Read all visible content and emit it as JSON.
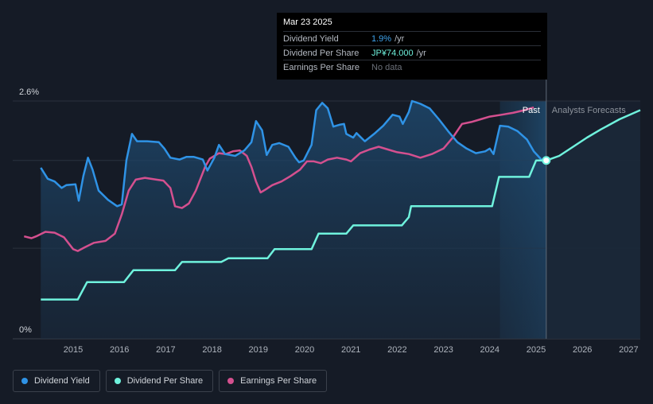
{
  "tooltip": {
    "date": "Mar 23 2025",
    "rows": [
      {
        "label": "Dividend Yield",
        "value": "1.9%",
        "unit": "/yr"
      },
      {
        "label": "Dividend Per Share",
        "value": "JP¥74.000",
        "unit": "/yr"
      },
      {
        "label": "Earnings Per Share",
        "value": "No data",
        "unit": ""
      }
    ]
  },
  "legend": [
    {
      "label": "Dividend Yield",
      "color": "#2f93e6"
    },
    {
      "label": "Dividend Per Share",
      "color": "#6ff2dd"
    },
    {
      "label": "Earnings Per Share",
      "color": "#d4508f"
    }
  ],
  "chart_data": {
    "type": "line",
    "y_tick_labels": [
      "2.6%",
      "0%"
    ],
    "x_tick_labels": [
      "2015",
      "2016",
      "2017",
      "2018",
      "2019",
      "2020",
      "2021",
      "2022",
      "2023",
      "2024",
      "2025",
      "2026",
      "2027"
    ],
    "past_label": "Past",
    "forecast_label": "Analysts Forecasts",
    "colors": {
      "yield": "#2f93e6",
      "dps": "#6ff2dd",
      "eps": "#d4508f"
    },
    "series": [
      {
        "name": "Dividend Yield",
        "unit": "%",
        "points": [
          [
            2014.3,
            1.87
          ],
          [
            2014.45,
            1.75
          ],
          [
            2014.6,
            1.72
          ],
          [
            2014.75,
            1.65
          ],
          [
            2014.85,
            1.68
          ],
          [
            2015.05,
            1.69
          ],
          [
            2015.12,
            1.51
          ],
          [
            2015.22,
            1.78
          ],
          [
            2015.32,
            1.98
          ],
          [
            2015.42,
            1.85
          ],
          [
            2015.55,
            1.62
          ],
          [
            2015.75,
            1.52
          ],
          [
            2015.95,
            1.45
          ],
          [
            2016.05,
            1.47
          ],
          [
            2016.15,
            1.95
          ],
          [
            2016.27,
            2.24
          ],
          [
            2016.38,
            2.16
          ],
          [
            2016.6,
            2.16
          ],
          [
            2016.85,
            2.15
          ],
          [
            2016.97,
            2.08
          ],
          [
            2017.1,
            1.98
          ],
          [
            2017.3,
            1.96
          ],
          [
            2017.45,
            1.99
          ],
          [
            2017.6,
            1.99
          ],
          [
            2017.8,
            1.96
          ],
          [
            2017.9,
            1.84
          ],
          [
            2018.05,
            1.98
          ],
          [
            2018.15,
            2.12
          ],
          [
            2018.28,
            2.02
          ],
          [
            2018.5,
            2.0
          ],
          [
            2018.7,
            2.06
          ],
          [
            2018.85,
            2.15
          ],
          [
            2018.95,
            2.38
          ],
          [
            2019.08,
            2.28
          ],
          [
            2019.18,
            2.01
          ],
          [
            2019.3,
            2.12
          ],
          [
            2019.45,
            2.14
          ],
          [
            2019.65,
            2.1
          ],
          [
            2019.8,
            1.98
          ],
          [
            2019.88,
            1.93
          ],
          [
            2019.98,
            1.95
          ],
          [
            2020.15,
            2.12
          ],
          [
            2020.25,
            2.5
          ],
          [
            2020.38,
            2.58
          ],
          [
            2020.5,
            2.52
          ],
          [
            2020.62,
            2.32
          ],
          [
            2020.75,
            2.34
          ],
          [
            2020.85,
            2.35
          ],
          [
            2020.9,
            2.24
          ],
          [
            2021.05,
            2.2
          ],
          [
            2021.12,
            2.25
          ],
          [
            2021.3,
            2.16
          ],
          [
            2021.5,
            2.24
          ],
          [
            2021.7,
            2.33
          ],
          [
            2021.9,
            2.45
          ],
          [
            2022.05,
            2.43
          ],
          [
            2022.12,
            2.35
          ],
          [
            2022.25,
            2.48
          ],
          [
            2022.32,
            2.6
          ],
          [
            2022.5,
            2.57
          ],
          [
            2022.7,
            2.52
          ],
          [
            2022.9,
            2.4
          ],
          [
            2023.1,
            2.27
          ],
          [
            2023.3,
            2.15
          ],
          [
            2023.5,
            2.08
          ],
          [
            2023.7,
            2.03
          ],
          [
            2023.9,
            2.05
          ],
          [
            2024.0,
            2.08
          ],
          [
            2024.08,
            2.02
          ],
          [
            2024.22,
            2.33
          ],
          [
            2024.4,
            2.32
          ],
          [
            2024.6,
            2.27
          ],
          [
            2024.8,
            2.18
          ],
          [
            2024.95,
            2.05
          ],
          [
            2025.15,
            1.94
          ],
          [
            2025.22,
            1.93
          ]
        ]
      },
      {
        "name": "Dividend Per Share",
        "unit": "JPY",
        "points": [
          [
            2014.3,
            0.43
          ],
          [
            2015.1,
            0.43
          ],
          [
            2015.3,
            0.62
          ],
          [
            2016.1,
            0.62
          ],
          [
            2016.3,
            0.75
          ],
          [
            2017.2,
            0.75
          ],
          [
            2017.35,
            0.84
          ],
          [
            2018.2,
            0.84
          ],
          [
            2018.35,
            0.88
          ],
          [
            2019.2,
            0.88
          ],
          [
            2019.35,
            0.98
          ],
          [
            2020.15,
            0.98
          ],
          [
            2020.3,
            1.15
          ],
          [
            2020.9,
            1.15
          ],
          [
            2021.05,
            1.24
          ],
          [
            2022.1,
            1.24
          ],
          [
            2022.25,
            1.33
          ],
          [
            2022.3,
            1.45
          ],
          [
            2024.05,
            1.45
          ],
          [
            2024.2,
            1.77
          ],
          [
            2024.4,
            1.77
          ],
          [
            2024.85,
            1.77
          ],
          [
            2025.0,
            1.95
          ],
          [
            2025.22,
            1.95
          ],
          [
            2025.5,
            2.0
          ],
          [
            2025.8,
            2.1
          ],
          [
            2026.1,
            2.2
          ],
          [
            2026.4,
            2.29
          ],
          [
            2026.8,
            2.4
          ],
          [
            2027.25,
            2.5
          ]
        ]
      },
      {
        "name": "Earnings Per Share",
        "unit": "JPY",
        "points": [
          [
            2013.94,
            1.12
          ],
          [
            2014.1,
            1.1
          ],
          [
            2014.2,
            1.12
          ],
          [
            2014.4,
            1.17
          ],
          [
            2014.6,
            1.16
          ],
          [
            2014.8,
            1.11
          ],
          [
            2015.0,
            0.98
          ],
          [
            2015.1,
            0.96
          ],
          [
            2015.25,
            1.0
          ],
          [
            2015.45,
            1.05
          ],
          [
            2015.7,
            1.07
          ],
          [
            2015.9,
            1.15
          ],
          [
            2016.05,
            1.36
          ],
          [
            2016.2,
            1.62
          ],
          [
            2016.35,
            1.74
          ],
          [
            2016.55,
            1.76
          ],
          [
            2016.8,
            1.74
          ],
          [
            2016.95,
            1.73
          ],
          [
            2017.1,
            1.65
          ],
          [
            2017.2,
            1.45
          ],
          [
            2017.35,
            1.43
          ],
          [
            2017.5,
            1.48
          ],
          [
            2017.65,
            1.62
          ],
          [
            2017.85,
            1.88
          ],
          [
            2017.95,
            1.97
          ],
          [
            2018.15,
            2.03
          ],
          [
            2018.3,
            2.02
          ],
          [
            2018.45,
            2.05
          ],
          [
            2018.6,
            2.06
          ],
          [
            2018.75,
            2.0
          ],
          [
            2018.85,
            1.88
          ],
          [
            2018.95,
            1.72
          ],
          [
            2019.05,
            1.6
          ],
          [
            2019.15,
            1.63
          ],
          [
            2019.3,
            1.68
          ],
          [
            2019.5,
            1.72
          ],
          [
            2019.7,
            1.78
          ],
          [
            2019.9,
            1.85
          ],
          [
            2020.05,
            1.94
          ],
          [
            2020.2,
            1.94
          ],
          [
            2020.35,
            1.92
          ],
          [
            2020.5,
            1.96
          ],
          [
            2020.7,
            1.98
          ],
          [
            2020.9,
            1.96
          ],
          [
            2021.0,
            1.94
          ],
          [
            2021.2,
            2.03
          ],
          [
            2021.4,
            2.07
          ],
          [
            2021.6,
            2.1
          ],
          [
            2021.8,
            2.07
          ],
          [
            2022.0,
            2.04
          ],
          [
            2022.25,
            2.02
          ],
          [
            2022.5,
            1.98
          ],
          [
            2022.75,
            2.02
          ],
          [
            2023.0,
            2.08
          ],
          [
            2023.2,
            2.2
          ],
          [
            2023.4,
            2.35
          ],
          [
            2023.6,
            2.37
          ],
          [
            2023.8,
            2.4
          ],
          [
            2024.0,
            2.43
          ],
          [
            2024.25,
            2.45
          ],
          [
            2024.5,
            2.47
          ],
          [
            2024.75,
            2.5
          ],
          [
            2024.95,
            2.53
          ]
        ]
      }
    ]
  }
}
